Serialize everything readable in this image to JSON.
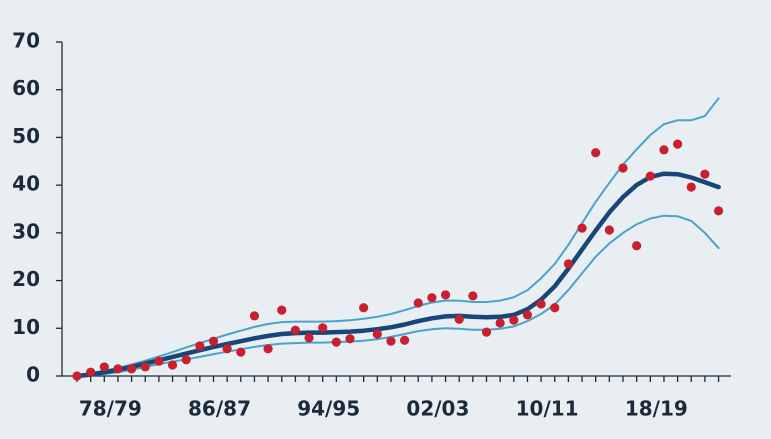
{
  "chart_data": {
    "type": "combo",
    "categories": [
      null,
      null,
      "78/79",
      null,
      null,
      null,
      null,
      null,
      null,
      null,
      "86/87",
      null,
      null,
      null,
      null,
      null,
      null,
      null,
      "94/95",
      null,
      null,
      null,
      null,
      null,
      null,
      null,
      "02/03",
      null,
      null,
      null,
      null,
      null,
      null,
      null,
      "10/11",
      null,
      null,
      null,
      null,
      null,
      null,
      null,
      "18/19",
      null,
      null,
      null,
      null,
      null
    ],
    "series": [
      {
        "type": "line",
        "color": "#4aa3cc",
        "width": 2,
        "values": [
          0.2,
          0.6,
          1.1,
          1.7,
          2.4,
          3.2,
          4.1,
          5.0,
          6.0,
          6.9,
          7.8,
          8.7,
          9.5,
          10.3,
          10.9,
          11.3,
          11.4,
          11.4,
          11.4,
          11.5,
          11.7,
          12,
          12.4,
          13,
          13.8,
          14.7,
          15.4,
          15.8,
          15.8,
          15.5,
          15.5,
          15.8,
          16.5,
          18,
          20.5,
          23.5,
          27.5,
          32,
          36.5,
          40.5,
          44.3,
          47.5,
          50.5,
          52.8,
          53.6,
          53.6,
          54.5,
          58.2
        ]
      },
      {
        "type": "line",
        "color": "#4aa3cc",
        "width": 2,
        "values": [
          0,
          0.1,
          0.4,
          0.8,
          1.3,
          1.9,
          2.5,
          3.0,
          3.5,
          4.0,
          4.6,
          5.1,
          5.6,
          6.1,
          6.5,
          6.8,
          6.9,
          7.0,
          7.0,
          7.1,
          7.2,
          7.4,
          7.7,
          8.2,
          8.8,
          9.4,
          9.8,
          10.0,
          9.9,
          9.7,
          9.7,
          9.9,
          10.4,
          11.5,
          13.0,
          15.0,
          18.0,
          21.5,
          25,
          27.8,
          30,
          31.8,
          33,
          33.6,
          33.5,
          32.5,
          30,
          26.8
        ]
      },
      {
        "type": "line",
        "color": "#17467a",
        "width": 4.5,
        "values": [
          0,
          0.3,
          0.8,
          1.3,
          1.9,
          2.6,
          3.3,
          4.0,
          4.7,
          5.4,
          6.1,
          6.7,
          7.3,
          7.9,
          8.4,
          8.8,
          9.0,
          9.1,
          9.1,
          9.2,
          9.3,
          9.5,
          9.8,
          10.2,
          10.8,
          11.5,
          12.1,
          12.5,
          12.6,
          12.4,
          12.3,
          12.4,
          12.8,
          14,
          16,
          18.8,
          22.5,
          26.5,
          30.5,
          34.3,
          37.5,
          40,
          41.7,
          42.4,
          42.3,
          41.6,
          40.6,
          39.6
        ]
      },
      {
        "type": "scatter",
        "color": "#c8202f",
        "values": [
          0,
          0.8,
          1.9,
          1.5,
          1.5,
          1.9,
          3.1,
          2.3,
          3.4,
          6.3,
          7.3,
          5.7,
          5.0,
          12.6,
          5.7,
          13.8,
          9.6,
          8.0,
          10.1,
          7.1,
          7.8,
          14.3,
          8.8,
          7.3,
          7.5,
          15.3,
          16.4,
          17.0,
          11.9,
          16.8,
          9.2,
          11.1,
          11.7,
          12.8,
          15.1,
          14.3,
          23.5,
          31.0,
          46.8,
          30.6,
          43.6,
          27.3,
          41.9,
          47.4,
          48.6,
          39.6,
          42.3,
          34.6
        ]
      }
    ],
    "ylim": [
      0,
      70
    ],
    "yticks": [
      0,
      10,
      20,
      30,
      40,
      50,
      60,
      70
    ],
    "grid": false
  }
}
